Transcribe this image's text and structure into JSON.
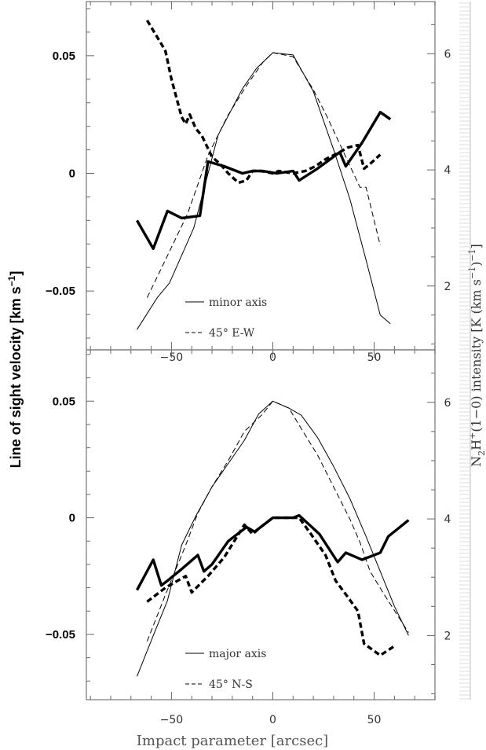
{
  "chart_data": [
    {
      "type": "line",
      "panel": "top",
      "xlim": [
        -92,
        80
      ],
      "ylim_left": [
        -0.075,
        0.073
      ],
      "ylim_right": [
        0.9,
        6.9
      ],
      "x_ticks": [
        -50,
        0,
        50
      ],
      "y_left_ticks": [
        0.05,
        0,
        -0.05
      ],
      "y_right_ticks": [
        6,
        4,
        2
      ],
      "legend": [
        "minor axis",
        "45° E-W"
      ],
      "series": [
        {
          "name": "minor axis",
          "axis": "left",
          "style": "thick-solid",
          "x": [
            -67,
            -59,
            -52,
            -45,
            -36,
            -32,
            -24,
            -15,
            -10,
            -5,
            2,
            10,
            13,
            22,
            33,
            36,
            44,
            53,
            58
          ],
          "y": [
            -0.02,
            -0.032,
            -0.016,
            -0.019,
            -0.018,
            0.005,
            0.003,
            0.0,
            0.001,
            0.001,
            0.0,
            0.001,
            -0.003,
            0.002,
            0.009,
            0.003,
            0.013,
            0.026,
            0.023
          ]
        },
        {
          "name": "45° E-W",
          "axis": "left",
          "style": "thick-dashed",
          "x": [
            -62,
            -55,
            -53,
            -50,
            -45,
            -43,
            -41,
            -38,
            -35,
            -30,
            -26,
            -22,
            -17,
            -13,
            -10,
            -6,
            0,
            3,
            10,
            16,
            21,
            26,
            33,
            37,
            42,
            45,
            48,
            53
          ],
          "y": [
            0.065,
            0.055,
            0.052,
            0.04,
            0.024,
            0.021,
            0.025,
            0.019,
            0.016,
            0.007,
            0.004,
            0.0,
            -0.004,
            -0.003,
            0.001,
            0.001,
            0.0,
            0.001,
            0.0,
            0.001,
            0.003,
            0.006,
            0.009,
            0.011,
            0.012,
            0.002,
            0.004,
            0.008
          ]
        },
        {
          "name": "minor axis",
          "axis": "right",
          "style": "thin-solid",
          "x": [
            -67,
            -57,
            -51,
            -39,
            -27,
            -15,
            -8,
            0,
            10,
            20,
            30,
            38,
            46,
            53,
            58
          ],
          "y": [
            1.25,
            1.8,
            2.05,
            3.0,
            4.6,
            5.4,
            5.75,
            6.02,
            5.98,
            5.35,
            4.35,
            3.5,
            2.45,
            1.5,
            1.35
          ]
        },
        {
          "name": "45° E-W",
          "axis": "right",
          "style": "thin-dashed",
          "x": [
            -62,
            -53,
            -42,
            -32,
            -22,
            -13,
            -5,
            0,
            10,
            20,
            27,
            35,
            43,
            46,
            53
          ],
          "y": [
            1.8,
            2.45,
            3.25,
            4.25,
            4.95,
            5.45,
            5.85,
            6.02,
            5.95,
            5.38,
            4.9,
            4.3,
            3.7,
            3.7,
            2.7
          ]
        }
      ]
    },
    {
      "type": "line",
      "panel": "bottom",
      "xlim": [
        -92,
        80
      ],
      "ylim_left": [
        -0.078,
        0.072
      ],
      "ylim_right": [
        0.9,
        6.9
      ],
      "x_ticks": [
        -50,
        0,
        50
      ],
      "y_left_ticks": [
        0.05,
        0,
        -0.05
      ],
      "y_right_ticks": [
        6,
        4,
        2
      ],
      "x_tick_labels": [
        "−50",
        "0",
        "50"
      ],
      "legend": [
        "major axis",
        "45° N-S"
      ],
      "series": [
        {
          "name": "major axis",
          "axis": "left",
          "style": "thick-solid",
          "x": [
            -67,
            -59,
            -55,
            -52,
            -45,
            -37,
            -34,
            -30,
            -22,
            -13,
            -9,
            0,
            10,
            13,
            23,
            32,
            36,
            44,
            53,
            57,
            67
          ],
          "y": [
            -0.031,
            -0.018,
            -0.029,
            -0.027,
            -0.022,
            -0.016,
            -0.023,
            -0.02,
            -0.01,
            -0.004,
            -0.006,
            0.0,
            0.0,
            0.001,
            -0.007,
            -0.019,
            -0.015,
            -0.018,
            -0.015,
            -0.008,
            -0.001
          ]
        },
        {
          "name": "45° N-S",
          "axis": "left",
          "style": "thick-dashed",
          "x": [
            -62,
            -53,
            -43,
            -40,
            -32,
            -24,
            -14,
            -10,
            -6,
            0,
            5,
            13,
            18,
            26,
            31,
            37,
            42,
            45,
            53,
            60
          ],
          "y": [
            -0.036,
            -0.03,
            -0.025,
            -0.032,
            -0.025,
            -0.017,
            -0.003,
            -0.007,
            -0.004,
            0.0,
            0.0,
            0.0,
            -0.006,
            -0.016,
            -0.027,
            -0.034,
            -0.04,
            -0.054,
            -0.059,
            -0.055
          ]
        },
        {
          "name": "major axis",
          "axis": "right",
          "style": "thin-solid",
          "x": [
            -67,
            -59,
            -52,
            -45,
            -38,
            -30,
            -22,
            -14,
            -7,
            0,
            8,
            14,
            22,
            30,
            38,
            46,
            53,
            60,
            67
          ],
          "y": [
            1.3,
            2.0,
            2.6,
            3.55,
            4.05,
            4.55,
            4.95,
            5.35,
            5.8,
            6.02,
            5.9,
            5.78,
            5.4,
            4.9,
            4.35,
            3.7,
            3.1,
            2.5,
            2.0
          ]
        },
        {
          "name": "45° N-S",
          "axis": "right",
          "style": "thin-dashed",
          "x": [
            -62,
            -53,
            -43,
            -37,
            -30,
            -22,
            -14,
            -5,
            0,
            8,
            14,
            22,
            30,
            38,
            43,
            48,
            55,
            67
          ],
          "y": [
            1.9,
            2.7,
            3.55,
            4.1,
            4.55,
            5.0,
            5.5,
            5.8,
            6.02,
            5.9,
            5.55,
            5.1,
            4.55,
            4.0,
            3.6,
            3.1,
            2.7,
            2.05
          ]
        }
      ]
    }
  ],
  "labels": {
    "y_left": "Line of sight velocity [km s",
    "y_left_sup": "−1",
    "y_left_end": "]",
    "y_right_a": "N",
    "y_right_sub": "2",
    "y_right_b": "H",
    "y_right_sup": "+",
    "y_right_c": "(1−0) intensity [K (km s",
    "y_right_sup2": "−1",
    "y_right_d": ")",
    "y_right_sup3": "−1",
    "y_right_e": "]",
    "x": "Impact parameter [arcsec]",
    "y_left_tick_labels": [
      "0.05",
      "0",
      "−0.05"
    ]
  }
}
